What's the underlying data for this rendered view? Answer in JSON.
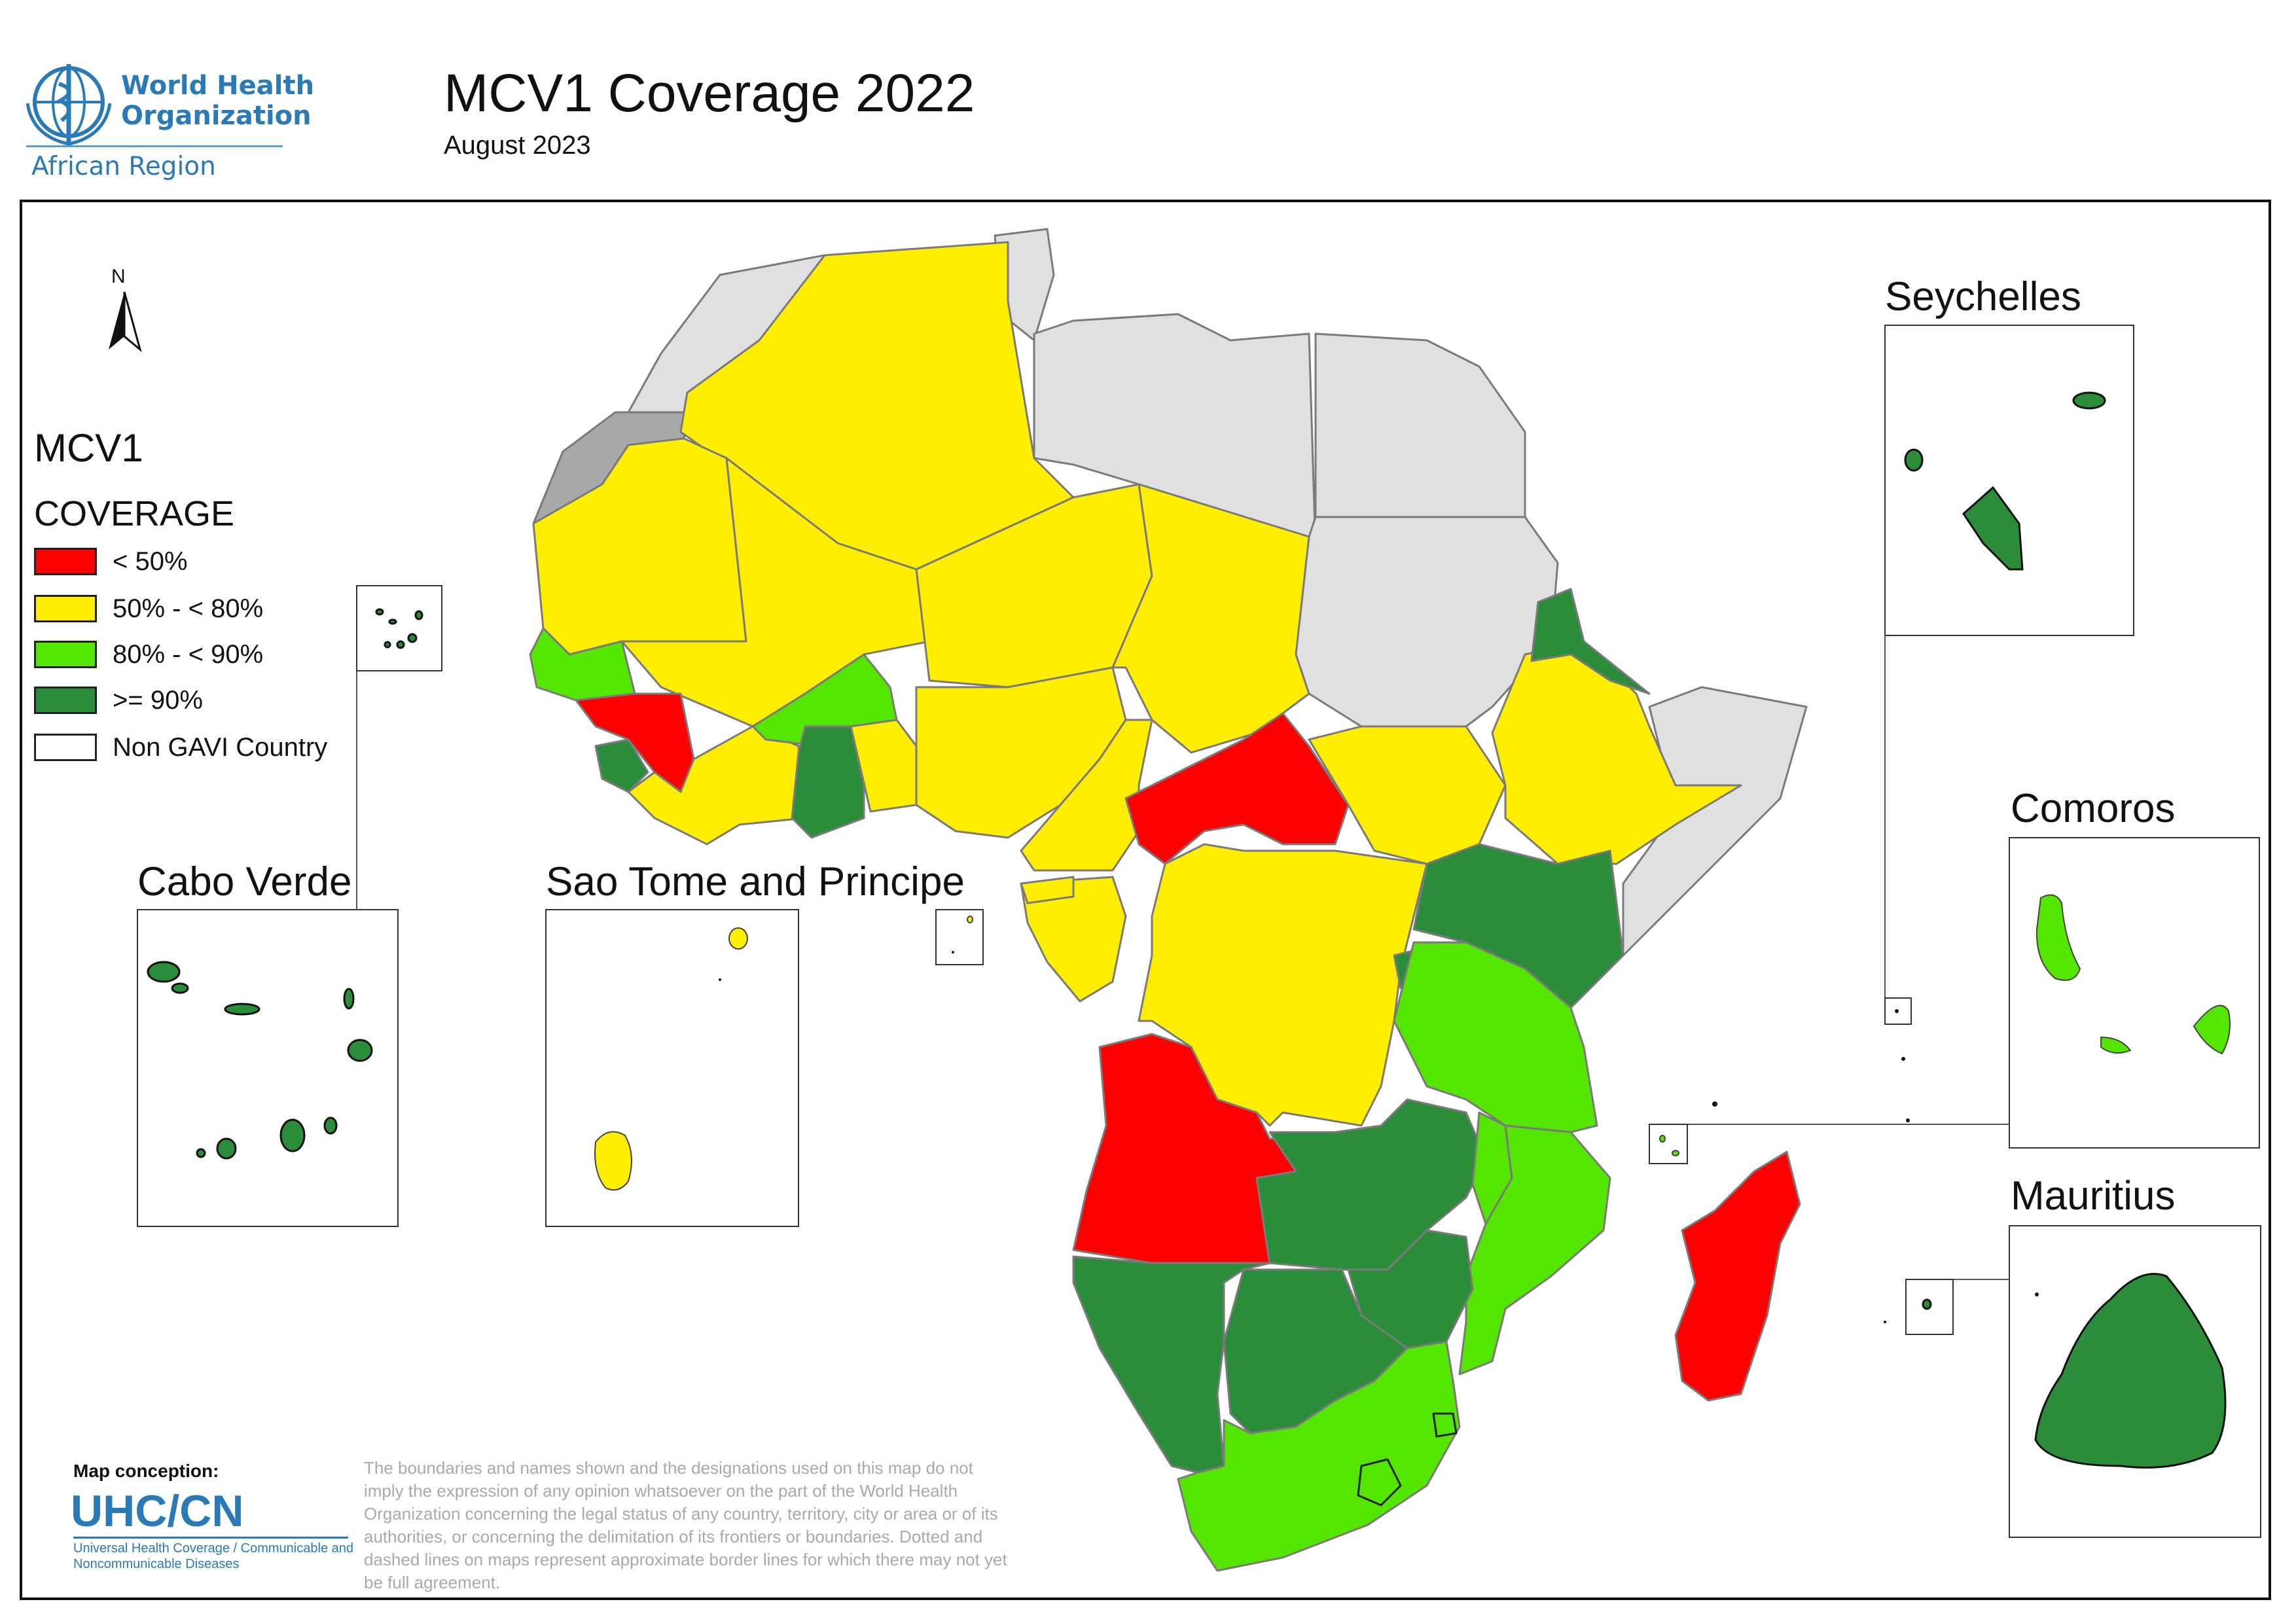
{
  "header": {
    "org_line1": "World Health",
    "org_line2": "Organization",
    "region": "African Region",
    "title": "MCV1 Coverage 2022",
    "subtitle": "August 2023"
  },
  "north_arrow": {
    "label": "N",
    "icon": "north-arrow-icon"
  },
  "legend": {
    "title_line1": "MCV1",
    "title_line2": "COVERAGE",
    "items": [
      {
        "label": "< 50%",
        "color": "#ff0000"
      },
      {
        "label": "50% - < 80%",
        "color": "#ffee00"
      },
      {
        "label": "80% - < 90%",
        "color": "#55e600"
      },
      {
        "label": ">= 90%",
        "color": "#2b8c3a"
      },
      {
        "label": "Non GAVI Country",
        "color": "#ffffff"
      }
    ]
  },
  "colors": {
    "red": "#ff0000",
    "yellow": "#ffee00",
    "light_green": "#55e600",
    "dark_green": "#2b8c3a",
    "non_gavi": "#e0e0e0",
    "disputed": "#a8a8a8",
    "who_blue": "#2a7ab8"
  },
  "insets": {
    "cabo_verde": "Cabo Verde",
    "sao_tome": "Sao Tome and Principe",
    "seychelles": "Seychelles",
    "comoros": "Comoros",
    "mauritius": "Mauritius"
  },
  "credits": {
    "conception_label": "Map conception:",
    "unit": "UHC/CN",
    "unit_full": "Universal Health Coverage / Communicable and Noncommunicable Diseases",
    "disclaimer": "The boundaries and names shown and the designations used on this map do not imply the expression of any opinion whatsoever on the part of the World Health Organization concerning the legal status of any country, territory, city or area or of its authorities, or concerning the delimitation of its frontiers or boundaries. Dotted and dashed lines on maps represent approximate border lines for which there may not yet be full agreement."
  }
}
